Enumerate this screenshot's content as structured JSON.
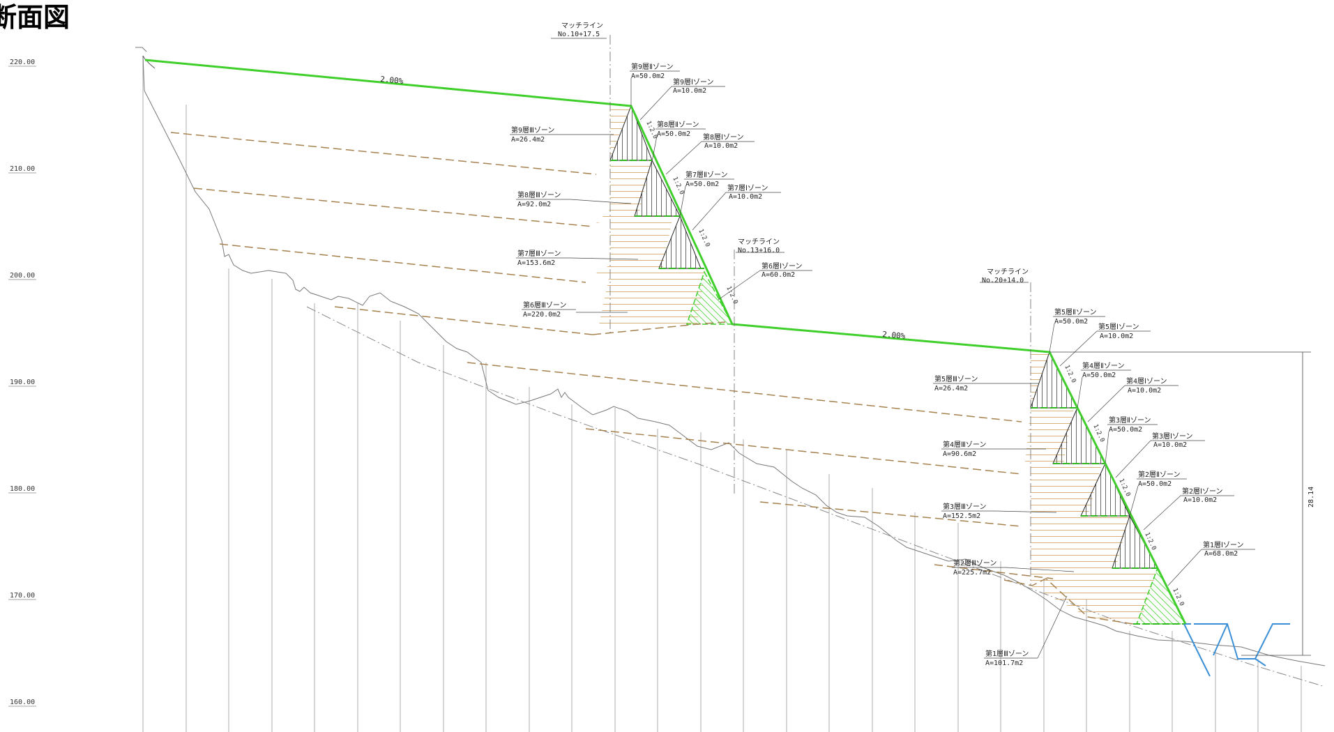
{
  "title": "断面図",
  "elevation_labels": [
    "220.00",
    "210.00",
    "200.00",
    "190.00",
    "180.00",
    "170.00",
    "160.00"
  ],
  "match_lines": [
    {
      "title": "マッチライン",
      "station": "No.10+17.5"
    },
    {
      "title": "マッチライン",
      "station": "No.13+16.0"
    },
    {
      "title": "マッチライン",
      "station": "No.20+14.0"
    }
  ],
  "grades": [
    "2.00%",
    "2.00%"
  ],
  "slope_ratio": "1:2.0",
  "total_height": "28.14",
  "zones": [
    {
      "name": "第9層Ⅱゾーン",
      "area": "A=50.0m2"
    },
    {
      "name": "第9層Ⅰゾーン",
      "area": "A=10.0m2"
    },
    {
      "name": "第9層Ⅲゾーン",
      "area": "A=26.4m2"
    },
    {
      "name": "第8層Ⅱゾーン",
      "area": "A=50.0m2"
    },
    {
      "name": "第8層Ⅰゾーン",
      "area": "A=10.0m2"
    },
    {
      "name": "第8層Ⅲゾーン",
      "area": "A=92.0m2"
    },
    {
      "name": "第7層Ⅱゾーン",
      "area": "A=50.0m2"
    },
    {
      "name": "第7層Ⅰゾーン",
      "area": "A=10.0m2"
    },
    {
      "name": "第7層Ⅲゾーン",
      "area": "A=153.6m2"
    },
    {
      "name": "第6層Ⅰゾーン",
      "area": "A=60.0m2"
    },
    {
      "name": "第6層Ⅲゾーン",
      "area": "A=220.0m2"
    },
    {
      "name": "第5層Ⅱゾーン",
      "area": "A=50.0m2"
    },
    {
      "name": "第5層Ⅰゾーン",
      "area": "A=10.0m2"
    },
    {
      "name": "第5層Ⅲゾーン",
      "area": "A=26.4m2"
    },
    {
      "name": "第4層Ⅱゾーン",
      "area": "A=50.0m2"
    },
    {
      "name": "第4層Ⅰゾーン",
      "area": "A=10.0m2"
    },
    {
      "name": "第4層Ⅲゾーン",
      "area": "A=90.6m2"
    },
    {
      "name": "第3層Ⅱゾーン",
      "area": "A=50.0m2"
    },
    {
      "name": "第3層Ⅰゾーン",
      "area": "A=10.0m2"
    },
    {
      "name": "第3層Ⅲゾーン",
      "area": "A=152.5m2"
    },
    {
      "name": "第2層Ⅱゾーン",
      "area": "A=50.0m2"
    },
    {
      "name": "第2層Ⅰゾーン",
      "area": "A=10.0m2"
    },
    {
      "name": "第2層Ⅲゾーン",
      "area": "A=225.7m2"
    },
    {
      "name": "第1層Ⅰゾーン",
      "area": "A=68.0m2"
    },
    {
      "name": "第1層Ⅲゾーン",
      "area": "A=101.7m2"
    }
  ],
  "colors": {
    "design_line": "#3fcf2a",
    "fill_hatch": "#d9b27a",
    "layer_dash": "#a5814e",
    "ground": "#777777",
    "channel": "#3b8fd6"
  }
}
